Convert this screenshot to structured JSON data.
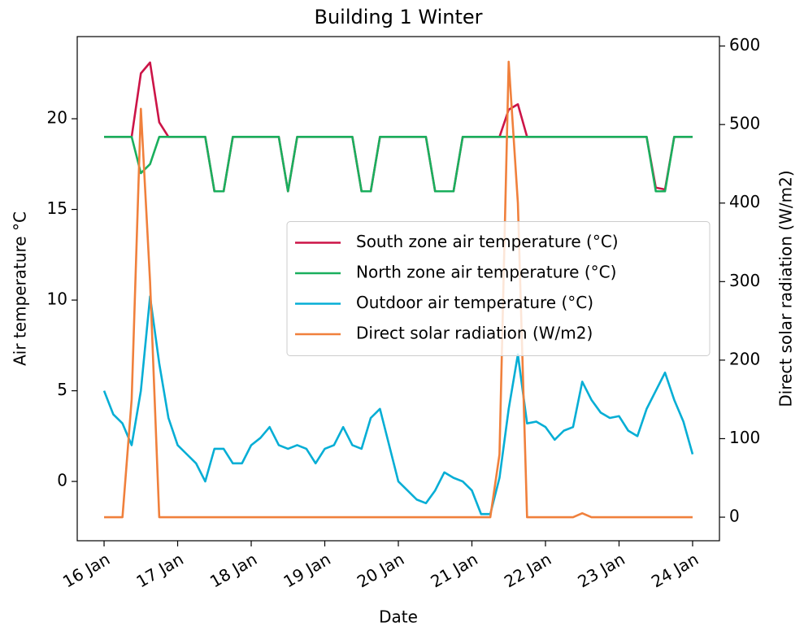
{
  "chart_data": {
    "type": "line",
    "title": "Building 1 Winter",
    "xlabel": "Date",
    "ylabel": "Air temperature °C",
    "y2label": "Direct solar radiation (W/m2)",
    "x": [
      16,
      16.125,
      16.25,
      16.375,
      16.5,
      16.625,
      16.75,
      16.875,
      17,
      17.125,
      17.25,
      17.375,
      17.5,
      17.625,
      17.75,
      17.875,
      18,
      18.125,
      18.25,
      18.375,
      18.5,
      18.625,
      18.75,
      18.875,
      19,
      19.125,
      19.25,
      19.375,
      19.5,
      19.625,
      19.75,
      19.875,
      20,
      20.125,
      20.25,
      20.375,
      20.5,
      20.625,
      20.75,
      20.875,
      21,
      21.125,
      21.25,
      21.375,
      21.5,
      21.625,
      21.75,
      21.875,
      22,
      22.125,
      22.25,
      22.375,
      22.5,
      22.625,
      22.75,
      22.875,
      23,
      23.125,
      23.25,
      23.375,
      23.5,
      23.625,
      23.75,
      23.875,
      24
    ],
    "series": [
      {
        "name": "South zone air temperature (°C)",
        "color": "#cc1447",
        "axis": "y",
        "values": [
          19,
          19,
          19,
          19,
          22.5,
          23.1,
          19.8,
          19,
          19,
          19,
          19,
          19,
          16,
          16,
          19,
          19,
          19,
          19,
          19,
          19,
          16,
          19,
          19,
          19,
          19,
          19,
          19,
          19,
          16,
          16,
          19,
          19,
          19,
          19,
          19,
          19,
          16,
          16,
          16,
          19,
          19,
          19,
          19,
          19,
          20.5,
          20.8,
          19,
          19,
          19,
          19,
          19,
          19,
          19,
          19,
          19,
          19,
          19,
          19,
          19,
          19,
          16.2,
          16.1,
          19,
          19,
          19
        ]
      },
      {
        "name": "North zone air temperature (°C)",
        "color": "#1aaf5d",
        "axis": "y",
        "values": [
          19,
          19,
          19,
          19,
          17,
          17.5,
          19,
          19,
          19,
          19,
          19,
          19,
          16,
          16,
          19,
          19,
          19,
          19,
          19,
          19,
          16,
          19,
          19,
          19,
          19,
          19,
          19,
          19,
          16,
          16,
          19,
          19,
          19,
          19,
          19,
          19,
          16,
          16,
          16,
          19,
          19,
          19,
          19,
          19,
          19,
          19,
          19,
          19,
          19,
          19,
          19,
          19,
          19,
          19,
          19,
          19,
          19,
          19,
          19,
          19,
          16,
          16,
          19,
          19,
          19
        ]
      },
      {
        "name": "Outdoor air temperature (°C)",
        "color": "#06aed5",
        "axis": "y",
        "values": [
          5,
          3.7,
          3.2,
          2,
          5,
          10.2,
          6.5,
          3.5,
          2,
          1.5,
          1,
          0,
          1.8,
          1.8,
          1,
          1,
          2,
          2.4,
          3,
          2,
          1.8,
          2,
          1.8,
          1,
          1.8,
          2,
          3,
          2,
          1.8,
          3.5,
          4,
          2,
          0,
          -0.5,
          -1,
          -1.2,
          -0.5,
          0.5,
          0.2,
          0,
          -0.5,
          -1.8,
          -1.8,
          0.2,
          4,
          7,
          3.2,
          3.3,
          3,
          2.3,
          2.8,
          3,
          5.5,
          4.5,
          3.8,
          3.5,
          3.6,
          2.8,
          2.5,
          4,
          5,
          6,
          4.5,
          3.3,
          1.5
        ]
      },
      {
        "name": "Direct solar radiation (W/m2)",
        "color": "#f0803c",
        "axis": "y2",
        "values": [
          0,
          0,
          0,
          150,
          520,
          300,
          0,
          0,
          0,
          0,
          0,
          0,
          0,
          0,
          0,
          0,
          0,
          0,
          0,
          0,
          0,
          0,
          0,
          0,
          0,
          0,
          0,
          0,
          0,
          0,
          0,
          0,
          0,
          0,
          0,
          0,
          0,
          0,
          0,
          0,
          0,
          0,
          0,
          80,
          580,
          400,
          0,
          0,
          0,
          0,
          0,
          0,
          5,
          0,
          0,
          0,
          0,
          0,
          0,
          0,
          0,
          0,
          0,
          0,
          0
        ]
      }
    ],
    "xlim": [
      15.635,
      24.365
    ],
    "xticks": [
      {
        "value": 16,
        "label": "16 Jan"
      },
      {
        "value": 17,
        "label": "17 Jan"
      },
      {
        "value": 18,
        "label": "18 Jan"
      },
      {
        "value": 19,
        "label": "19 Jan"
      },
      {
        "value": 20,
        "label": "20 Jan"
      },
      {
        "value": 21,
        "label": "21 Jan"
      },
      {
        "value": 22,
        "label": "22 Jan"
      },
      {
        "value": 23,
        "label": "23 Jan"
      },
      {
        "value": 24,
        "label": "24 Jan"
      }
    ],
    "ylim": [
      -3.27,
      24.53
    ],
    "yticks": [
      0,
      5,
      10,
      15,
      20
    ],
    "y2lim": [
      -30,
      612
    ],
    "y2ticks": [
      0,
      100,
      200,
      300,
      400,
      500,
      600
    ],
    "legend": "center right",
    "grid": false
  }
}
